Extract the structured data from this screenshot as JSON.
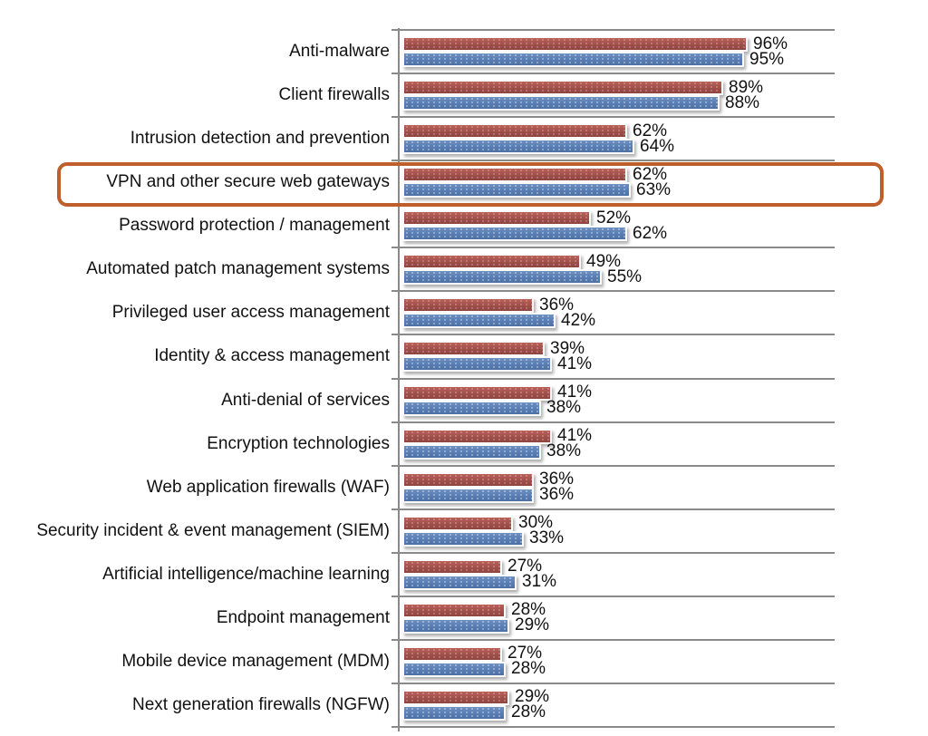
{
  "chart_data": {
    "type": "bar",
    "orientation": "horizontal",
    "title": "",
    "xlabel": "",
    "ylabel": "",
    "xlim": [
      0,
      122
    ],
    "grid": true,
    "legend": false,
    "categories": [
      "Anti-malware",
      "Client firewalls",
      "Intrusion detection and prevention",
      "VPN and other secure web gateways",
      "Password protection / management",
      "Automated patch management systems",
      "Privileged user access management",
      "Identity & access management",
      "Anti-denial of services",
      "Encryption technologies",
      "Web application firewalls (WAF)",
      "Security incident & event management (SIEM)",
      "Artificial intelligence/machine learning",
      "Endpoint management",
      "Mobile device management (MDM)",
      "Next generation firewalls (NGFW)"
    ],
    "series": [
      {
        "name": "red-series",
        "color": "#A5524D",
        "values": [
          96,
          89,
          62,
          62,
          52,
          49,
          36,
          39,
          41,
          41,
          36,
          30,
          27,
          28,
          27,
          29
        ],
        "labels": [
          "96%",
          "89%",
          "62%",
          "62%",
          "52%",
          "49%",
          "36%",
          "39%",
          "41%",
          "41%",
          "36%",
          "30%",
          "27%",
          "28%",
          "27%",
          "29%"
        ]
      },
      {
        "name": "blue-series",
        "color": "#5B80B5",
        "values": [
          95,
          88,
          64,
          63,
          62,
          55,
          42,
          41,
          38,
          38,
          36,
          33,
          31,
          29,
          28,
          28
        ],
        "labels": [
          "95%",
          "88%",
          "64%",
          "63%",
          "62%",
          "55%",
          "42%",
          "41%",
          "38%",
          "38%",
          "36%",
          "33%",
          "31%",
          "29%",
          "28%",
          "28%"
        ]
      }
    ],
    "highlight": {
      "category": "VPN and other secure web gateways",
      "index": 3,
      "border_color": "#C05E2B"
    },
    "colors": {
      "gridline": "#8A8A8A",
      "text": "#111111",
      "background": "#FFFFFF"
    }
  }
}
